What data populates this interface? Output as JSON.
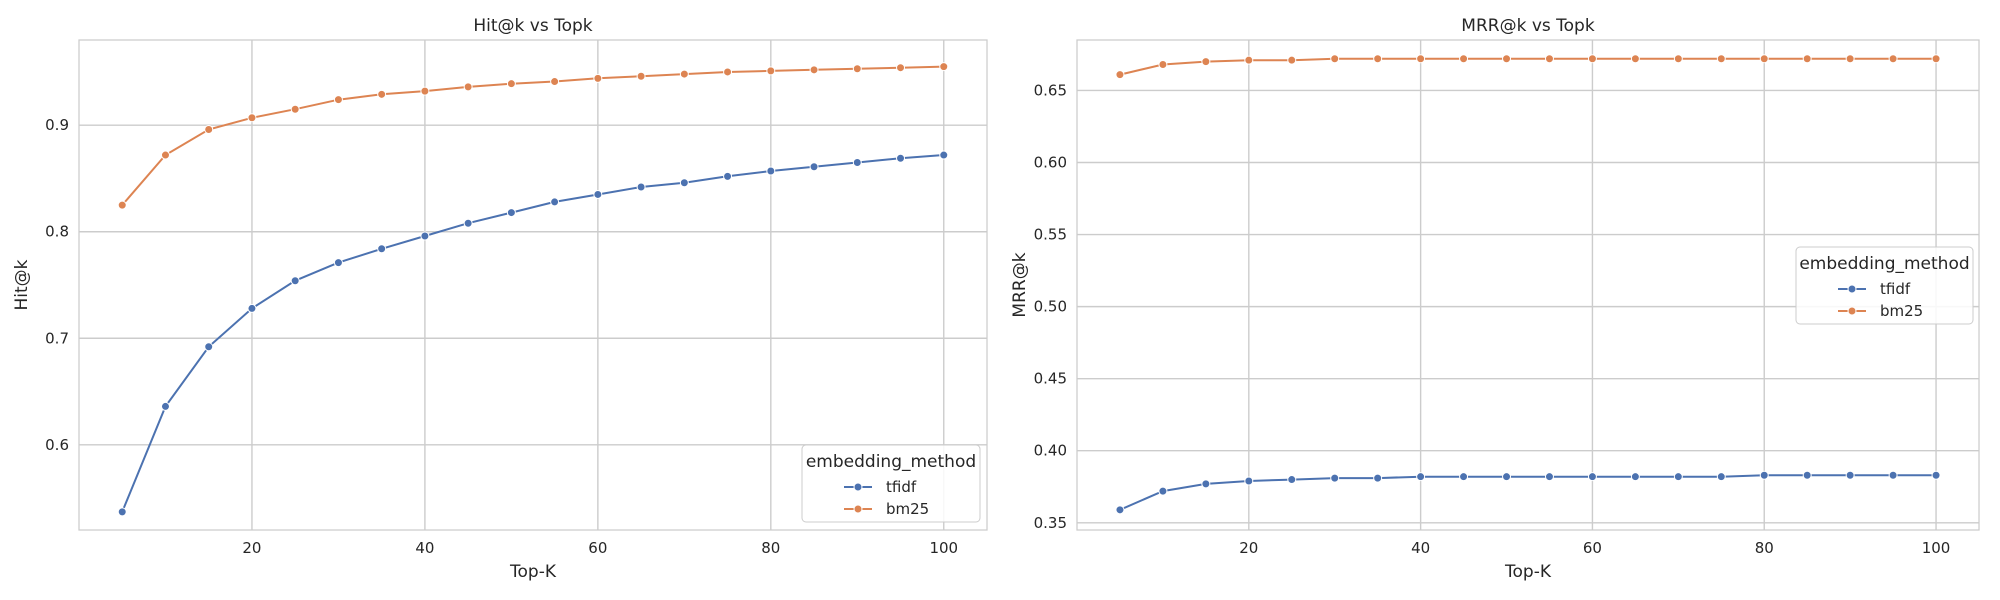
{
  "chart_data": [
    {
      "type": "line",
      "title": "Hit@k vs Topk",
      "xlabel": "Top-K",
      "ylabel": "Hit@k",
      "xlim": [
        0,
        105
      ],
      "ylim": [
        0.52,
        0.98
      ],
      "xticks": [
        20,
        40,
        60,
        80,
        100
      ],
      "yticks": [
        0.6,
        0.7,
        0.8,
        0.9
      ],
      "grid": true,
      "legend": {
        "title": "embedding_method",
        "placement": "lower-right"
      },
      "x": [
        5,
        10,
        15,
        20,
        25,
        30,
        35,
        40,
        45,
        50,
        55,
        60,
        65,
        70,
        75,
        80,
        85,
        90,
        95,
        100
      ],
      "series": [
        {
          "name": "tfidf",
          "color": "#4c72b0",
          "values": [
            0.537,
            0.636,
            0.692,
            0.728,
            0.754,
            0.771,
            0.784,
            0.796,
            0.808,
            0.818,
            0.828,
            0.835,
            0.842,
            0.846,
            0.852,
            0.857,
            0.861,
            0.865,
            0.869,
            0.872
          ]
        },
        {
          "name": "bm25",
          "color": "#dd8452",
          "values": [
            0.825,
            0.872,
            0.896,
            0.907,
            0.915,
            0.924,
            0.929,
            0.932,
            0.936,
            0.939,
            0.941,
            0.944,
            0.946,
            0.948,
            0.95,
            0.951,
            0.952,
            0.953,
            0.954,
            0.955
          ]
        }
      ]
    },
    {
      "type": "line",
      "title": "MRR@k vs Topk",
      "xlabel": "Top-K",
      "ylabel": "MRR@k",
      "xlim": [
        0,
        105
      ],
      "ylim": [
        0.345,
        0.685
      ],
      "xticks": [
        20,
        40,
        60,
        80,
        100
      ],
      "yticks": [
        0.35,
        0.4,
        0.45,
        0.5,
        0.55,
        0.6,
        0.65
      ],
      "grid": true,
      "legend": {
        "title": "embedding_method",
        "placement": "center-right"
      },
      "x": [
        5,
        10,
        15,
        20,
        25,
        30,
        35,
        40,
        45,
        50,
        55,
        60,
        65,
        70,
        75,
        80,
        85,
        90,
        95,
        100
      ],
      "series": [
        {
          "name": "tfidf",
          "color": "#4c72b0",
          "values": [
            0.359,
            0.372,
            0.377,
            0.379,
            0.38,
            0.381,
            0.381,
            0.382,
            0.382,
            0.382,
            0.382,
            0.382,
            0.382,
            0.382,
            0.382,
            0.383,
            0.383,
            0.383,
            0.383,
            0.383
          ]
        },
        {
          "name": "bm25",
          "color": "#dd8452",
          "values": [
            0.661,
            0.668,
            0.67,
            0.671,
            0.671,
            0.672,
            0.672,
            0.672,
            0.672,
            0.672,
            0.672,
            0.672,
            0.672,
            0.672,
            0.672,
            0.672,
            0.672,
            0.672,
            0.672,
            0.672
          ]
        }
      ]
    }
  ]
}
